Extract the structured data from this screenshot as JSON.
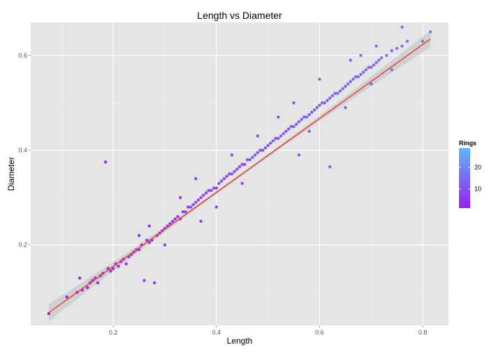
{
  "chart_data": {
    "type": "scatter",
    "title": "Length vs Diameter",
    "xlabel": "Length",
    "ylabel": "Diameter",
    "xlim": [
      0.04,
      0.85
    ],
    "ylim": [
      0.03,
      0.67
    ],
    "x_ticks": [
      0.2,
      0.4,
      0.6,
      0.8
    ],
    "y_ticks": [
      0.2,
      0.4,
      0.6
    ],
    "x_tick_labels": [
      "0.2",
      "0.4",
      "0.6",
      "0.8"
    ],
    "y_tick_labels": [
      "0.2",
      "0.4",
      "0.6"
    ],
    "grid": true,
    "background_color": "#e5e5e5",
    "trend_line": {
      "method": "linear",
      "x": [
        0.075,
        0.815
      ],
      "y": [
        0.057,
        0.635
      ],
      "color": "#e8403a",
      "band_color": "#c8c8c8"
    },
    "points": [
      [
        0.075,
        0.055
      ],
      [
        0.11,
        0.09
      ],
      [
        0.13,
        0.1
      ],
      [
        0.135,
        0.13
      ],
      [
        0.14,
        0.105
      ],
      [
        0.15,
        0.11
      ],
      [
        0.155,
        0.12
      ],
      [
        0.16,
        0.125
      ],
      [
        0.165,
        0.13
      ],
      [
        0.17,
        0.12
      ],
      [
        0.175,
        0.135
      ],
      [
        0.18,
        0.14
      ],
      [
        0.185,
        0.375
      ],
      [
        0.19,
        0.15
      ],
      [
        0.195,
        0.145
      ],
      [
        0.2,
        0.15
      ],
      [
        0.205,
        0.16
      ],
      [
        0.21,
        0.155
      ],
      [
        0.215,
        0.165
      ],
      [
        0.22,
        0.17
      ],
      [
        0.225,
        0.16
      ],
      [
        0.23,
        0.175
      ],
      [
        0.235,
        0.18
      ],
      [
        0.24,
        0.185
      ],
      [
        0.245,
        0.19
      ],
      [
        0.25,
        0.19
      ],
      [
        0.255,
        0.2
      ],
      [
        0.26,
        0.125
      ],
      [
        0.265,
        0.21
      ],
      [
        0.27,
        0.205
      ],
      [
        0.275,
        0.21
      ],
      [
        0.28,
        0.12
      ],
      [
        0.285,
        0.22
      ],
      [
        0.29,
        0.225
      ],
      [
        0.295,
        0.23
      ],
      [
        0.3,
        0.235
      ],
      [
        0.305,
        0.24
      ],
      [
        0.31,
        0.245
      ],
      [
        0.315,
        0.25
      ],
      [
        0.32,
        0.255
      ],
      [
        0.325,
        0.26
      ],
      [
        0.33,
        0.255
      ],
      [
        0.335,
        0.27
      ],
      [
        0.34,
        0.27
      ],
      [
        0.345,
        0.28
      ],
      [
        0.35,
        0.28
      ],
      [
        0.355,
        0.285
      ],
      [
        0.36,
        0.29
      ],
      [
        0.365,
        0.295
      ],
      [
        0.37,
        0.3
      ],
      [
        0.375,
        0.305
      ],
      [
        0.38,
        0.31
      ],
      [
        0.385,
        0.315
      ],
      [
        0.39,
        0.315
      ],
      [
        0.395,
        0.32
      ],
      [
        0.4,
        0.32
      ],
      [
        0.405,
        0.33
      ],
      [
        0.41,
        0.335
      ],
      [
        0.415,
        0.34
      ],
      [
        0.42,
        0.345
      ],
      [
        0.425,
        0.35
      ],
      [
        0.43,
        0.35
      ],
      [
        0.435,
        0.355
      ],
      [
        0.44,
        0.36
      ],
      [
        0.445,
        0.365
      ],
      [
        0.45,
        0.37
      ],
      [
        0.455,
        0.37
      ],
      [
        0.46,
        0.38
      ],
      [
        0.465,
        0.38
      ],
      [
        0.47,
        0.385
      ],
      [
        0.475,
        0.39
      ],
      [
        0.48,
        0.395
      ],
      [
        0.485,
        0.4
      ],
      [
        0.49,
        0.4
      ],
      [
        0.495,
        0.405
      ],
      [
        0.5,
        0.41
      ],
      [
        0.505,
        0.415
      ],
      [
        0.51,
        0.42
      ],
      [
        0.515,
        0.425
      ],
      [
        0.52,
        0.425
      ],
      [
        0.525,
        0.43
      ],
      [
        0.53,
        0.435
      ],
      [
        0.535,
        0.44
      ],
      [
        0.54,
        0.445
      ],
      [
        0.545,
        0.45
      ],
      [
        0.55,
        0.45
      ],
      [
        0.555,
        0.455
      ],
      [
        0.56,
        0.46
      ],
      [
        0.565,
        0.465
      ],
      [
        0.57,
        0.47
      ],
      [
        0.575,
        0.47
      ],
      [
        0.58,
        0.475
      ],
      [
        0.585,
        0.48
      ],
      [
        0.59,
        0.485
      ],
      [
        0.595,
        0.49
      ],
      [
        0.6,
        0.495
      ],
      [
        0.605,
        0.5
      ],
      [
        0.61,
        0.5
      ],
      [
        0.615,
        0.505
      ],
      [
        0.62,
        0.51
      ],
      [
        0.625,
        0.515
      ],
      [
        0.63,
        0.52
      ],
      [
        0.635,
        0.52
      ],
      [
        0.64,
        0.525
      ],
      [
        0.645,
        0.53
      ],
      [
        0.65,
        0.535
      ],
      [
        0.655,
        0.54
      ],
      [
        0.66,
        0.545
      ],
      [
        0.665,
        0.55
      ],
      [
        0.67,
        0.555
      ],
      [
        0.675,
        0.555
      ],
      [
        0.68,
        0.56
      ],
      [
        0.685,
        0.565
      ],
      [
        0.69,
        0.57
      ],
      [
        0.695,
        0.575
      ],
      [
        0.7,
        0.575
      ],
      [
        0.705,
        0.58
      ],
      [
        0.71,
        0.585
      ],
      [
        0.715,
        0.59
      ],
      [
        0.72,
        0.595
      ],
      [
        0.73,
        0.6
      ],
      [
        0.74,
        0.61
      ],
      [
        0.75,
        0.615
      ],
      [
        0.76,
        0.62
      ],
      [
        0.77,
        0.63
      ],
      [
        0.8,
        0.63
      ],
      [
        0.815,
        0.65
      ],
      [
        0.62,
        0.365
      ],
      [
        0.56,
        0.39
      ],
      [
        0.66,
        0.59
      ],
      [
        0.37,
        0.25
      ],
      [
        0.4,
        0.28
      ],
      [
        0.36,
        0.34
      ],
      [
        0.43,
        0.39
      ],
      [
        0.48,
        0.43
      ],
      [
        0.52,
        0.47
      ],
      [
        0.58,
        0.44
      ],
      [
        0.6,
        0.55
      ],
      [
        0.65,
        0.49
      ],
      [
        0.7,
        0.54
      ],
      [
        0.45,
        0.33
      ],
      [
        0.33,
        0.3
      ],
      [
        0.3,
        0.2
      ],
      [
        0.27,
        0.24
      ],
      [
        0.25,
        0.22
      ],
      [
        0.71,
        0.62
      ],
      [
        0.74,
        0.57
      ],
      [
        0.76,
        0.66
      ],
      [
        0.68,
        0.6
      ],
      [
        0.55,
        0.5
      ]
    ],
    "color_scale": {
      "name": "Rings",
      "low_color": "#9a1fee",
      "high_color": "#5fb6ff",
      "min": 1,
      "max": 29,
      "tick_values": [
        10,
        20
      ],
      "tick_labels": [
        "10",
        "20"
      ]
    }
  }
}
